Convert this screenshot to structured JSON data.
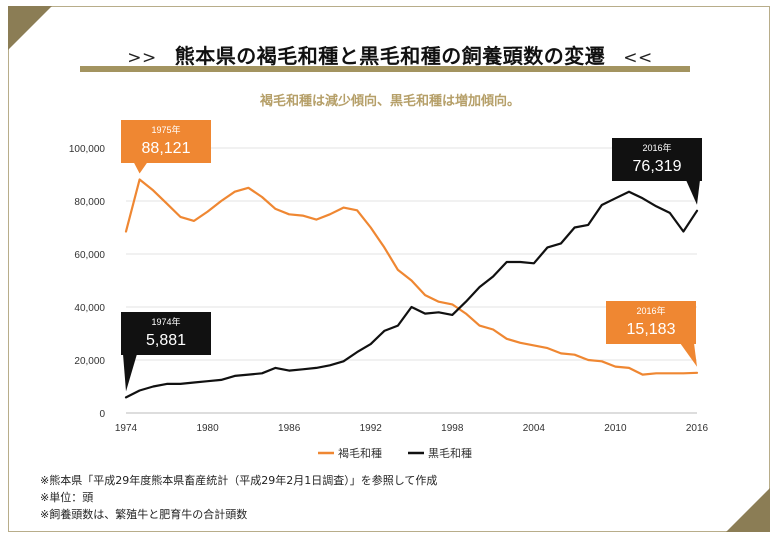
{
  "header": {
    "title": "熊本県の褐毛和種と黒毛和種の飼養頭数の変遷",
    "arrow_left": ">>",
    "arrow_right": "<<",
    "subtitle": "褐毛和種は減少傾向、黒毛和種は増加傾向。"
  },
  "colors": {
    "brown": "#ef8732",
    "black": "#111111",
    "accent": "#a39460",
    "grid": "#e3e3e3"
  },
  "chart_data": {
    "type": "line",
    "title": "熊本県の褐毛和種と黒毛和種の飼養頭数の変遷",
    "xlabel": "",
    "ylabel": "",
    "x": [
      1974,
      1975,
      1976,
      1977,
      1978,
      1979,
      1980,
      1981,
      1982,
      1983,
      1984,
      1985,
      1986,
      1987,
      1988,
      1989,
      1990,
      1991,
      1992,
      1993,
      1994,
      1995,
      1996,
      1997,
      1998,
      1999,
      2000,
      2001,
      2002,
      2003,
      2004,
      2005,
      2006,
      2007,
      2008,
      2009,
      2010,
      2011,
      2012,
      2013,
      2014,
      2015,
      2016
    ],
    "ylim": [
      0,
      100000
    ],
    "xlim": [
      1974,
      2016
    ],
    "yticks": [
      0,
      20000,
      40000,
      60000,
      80000,
      100000
    ],
    "ytick_labels": [
      "0",
      "20,000",
      "40,000",
      "60,000",
      "80,000",
      "100,000"
    ],
    "xticks": [
      1974,
      1980,
      1986,
      1992,
      1998,
      2004,
      2010,
      2016
    ],
    "xtick_labels": [
      "1974",
      "1980",
      "1986",
      "1992",
      "1998",
      "2004",
      "2010",
      "2016"
    ],
    "grid": true,
    "legend_position": "bottom-center",
    "series": [
      {
        "name": "褐毛和種",
        "color": "#ef8732",
        "values": [
          68500,
          88121,
          84000,
          79000,
          74000,
          72500,
          76000,
          80000,
          83500,
          85000,
          81500,
          77000,
          75000,
          74500,
          73000,
          75000,
          77500,
          76500,
          70000,
          62500,
          54000,
          50000,
          44500,
          42000,
          41000,
          37500,
          33000,
          31500,
          28000,
          26500,
          25500,
          24500,
          22500,
          22000,
          20000,
          19500,
          17500,
          17000,
          14500,
          15000,
          15000,
          15000,
          15183
        ]
      },
      {
        "name": "黒毛和種",
        "color": "#111111",
        "values": [
          5881,
          8500,
          10000,
          11000,
          11000,
          11500,
          12000,
          12500,
          14000,
          14500,
          15000,
          17000,
          16000,
          16500,
          17000,
          18000,
          19500,
          23000,
          26000,
          31000,
          33000,
          40000,
          37500,
          38000,
          37000,
          42000,
          47500,
          51500,
          57000,
          57000,
          56500,
          62500,
          64000,
          70000,
          71000,
          78500,
          81000,
          83500,
          81000,
          78000,
          75500,
          68500,
          76319
        ]
      }
    ],
    "annotations": [
      {
        "year_label": "1975年",
        "value_label": "88,121",
        "series": "褐毛和種",
        "x": 1975,
        "y": 88121
      },
      {
        "year_label": "2016年",
        "value_label": "76,319",
        "series": "黒毛和種",
        "x": 2016,
        "y": 76319
      },
      {
        "year_label": "1974年",
        "value_label": "5,881",
        "series": "黒毛和種",
        "x": 1974,
        "y": 5881
      },
      {
        "year_label": "2016年",
        "value_label": "15,183",
        "series": "褐毛和種",
        "x": 2016,
        "y": 15183
      }
    ]
  },
  "notes": [
    "※熊本県「平成29年度熊本県畜産統計（平成29年2月1日調査）」を参照して作成",
    "※単位：頭",
    "※飼養頭数は、繁殖牛と肥育牛の合計頭数"
  ]
}
